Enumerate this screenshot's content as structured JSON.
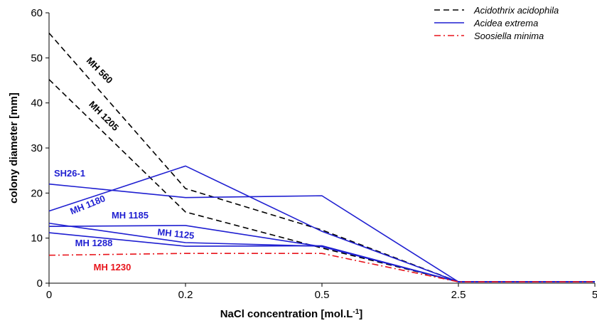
{
  "chart_data": {
    "type": "line",
    "xlabel": "NaCl concentration [mol.L",
    "xlabel_sup": "-1",
    "xlabel_suffix": "]",
    "ylabel": "colony diameter [mm]",
    "categories": [
      "0",
      "0.2",
      "0.5",
      "2.5",
      "5"
    ],
    "ylim": [
      0,
      60
    ],
    "yticks": [
      "0",
      "10",
      "20",
      "30",
      "40",
      "50",
      "60"
    ],
    "grid": false,
    "legend_position": "top-right",
    "groups": [
      {
        "name": "Acidothrix acidophila",
        "color": "#000000",
        "dash": "dashed"
      },
      {
        "name": "Acidea extrema",
        "color": "#1f1fd1",
        "dash": "solid"
      },
      {
        "name": "Soosiella minima",
        "color": "#e8141b",
        "dash": "dashdot"
      }
    ],
    "series": [
      {
        "name": "MH 560",
        "group": 0,
        "values": [
          55.5,
          21.0,
          11.8,
          0.3,
          0.3
        ]
      },
      {
        "name": "MH 1205",
        "group": 0,
        "values": [
          45.2,
          15.8,
          7.8,
          0.3,
          0.3
        ]
      },
      {
        "name": "SH26-1",
        "group": 1,
        "values": [
          22.0,
          19.0,
          19.4,
          0.3,
          0.3
        ]
      },
      {
        "name": "MH 1180",
        "group": 1,
        "values": [
          16.0,
          26.0,
          11.5,
          0.3,
          0.3
        ]
      },
      {
        "name": "MH 1185",
        "group": 1,
        "values": [
          12.6,
          12.8,
          8.1,
          0.3,
          0.3
        ]
      },
      {
        "name": "MH 1125",
        "group": 1,
        "values": [
          13.3,
          9.0,
          8.2,
          0.3,
          0.3
        ]
      },
      {
        "name": "MH 1288",
        "group": 1,
        "values": [
          11.2,
          8.2,
          8.3,
          0.3,
          0.3
        ]
      },
      {
        "name": "MH 1230",
        "group": 2,
        "values": [
          6.2,
          6.6,
          6.6,
          0.3,
          0.3
        ]
      }
    ]
  }
}
